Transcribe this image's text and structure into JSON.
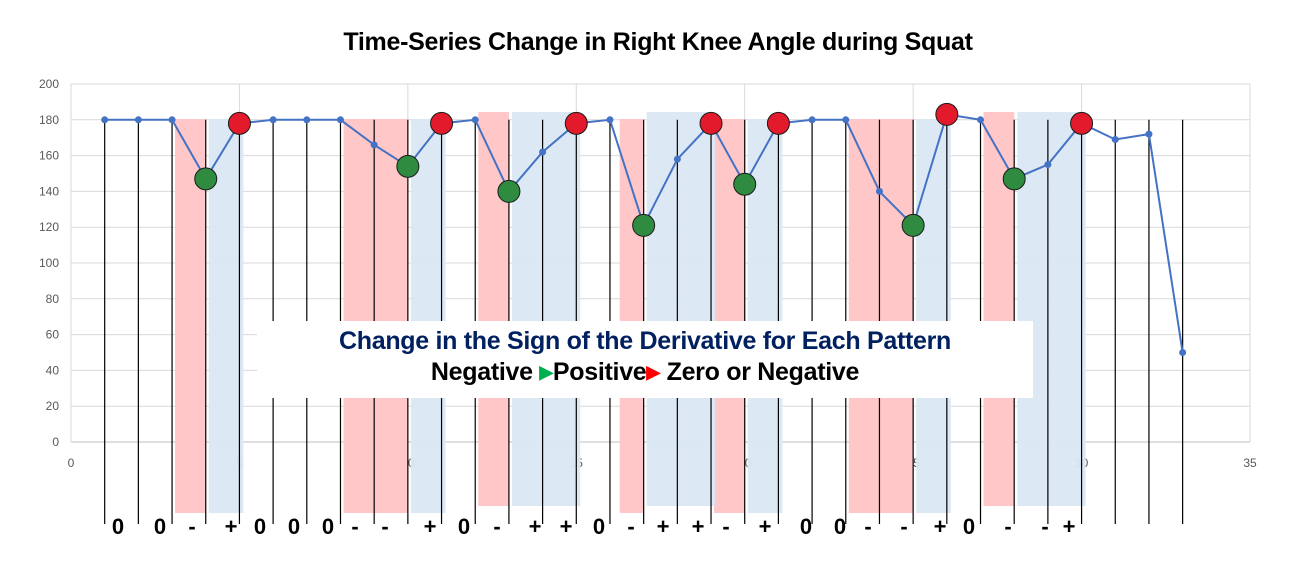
{
  "chart_data": {
    "type": "line",
    "title": "Time-Series Change in Right Knee Angle during Squat",
    "xlabel": "",
    "ylabel": "",
    "xlim": [
      0,
      35
    ],
    "ylim": [
      0,
      200
    ],
    "x_ticks": [
      0,
      5,
      10,
      15,
      20,
      25,
      30,
      35
    ],
    "y_ticks": [
      0,
      20,
      40,
      60,
      80,
      100,
      120,
      140,
      160,
      180,
      200
    ],
    "grid": true,
    "legend": null,
    "series": [
      {
        "name": "Right Knee Angle",
        "color": "#4472c4",
        "x": [
          1,
          2,
          3,
          4,
          5,
          6,
          7,
          8,
          9,
          10,
          11,
          12,
          13,
          14,
          15,
          16,
          17,
          18,
          19,
          20,
          21,
          22,
          23,
          24,
          25,
          26,
          27,
          28,
          29,
          30,
          31,
          32,
          33
        ],
        "values": [
          180,
          180,
          180,
          147,
          178,
          180,
          180,
          180,
          166,
          154,
          178,
          180,
          140,
          162,
          178,
          180,
          121,
          158,
          178,
          144,
          178,
          180,
          180,
          140,
          121,
          183,
          180,
          147,
          155,
          178,
          169,
          172,
          50
        ]
      }
    ],
    "minima_markers": {
      "color": "#2e8b40",
      "x": [
        4,
        10,
        13,
        17,
        20,
        25,
        28
      ]
    },
    "maxima_markers": {
      "color": "#e31a2b",
      "x": [
        5,
        11,
        15,
        19,
        21,
        26,
        30
      ]
    },
    "negative_regions": [
      [
        3,
        4
      ],
      [
        8,
        10
      ],
      [
        12,
        13
      ],
      [
        16.2,
        17
      ],
      [
        19,
        20
      ],
      [
        23,
        25
      ],
      [
        27,
        28
      ]
    ],
    "positive_regions": [
      [
        4,
        5
      ],
      [
        10,
        11
      ],
      [
        13,
        15
      ],
      [
        17,
        19
      ],
      [
        20,
        21
      ],
      [
        25,
        26
      ],
      [
        28,
        30
      ]
    ],
    "region_colors": {
      "negative": "#ffc7c8",
      "positive": "#dae8f4"
    },
    "derivative_signs": [
      "0",
      "0",
      "-",
      "+",
      "0",
      "0",
      "0",
      "-",
      "-",
      "+",
      "0",
      "-",
      "+",
      "+",
      "0",
      "-",
      "+",
      "+",
      "-",
      "+",
      "0",
      "0",
      "-",
      "-",
      "+",
      "0",
      "-",
      "-",
      "+"
    ],
    "annotations": [
      "Change in the Sign of the Derivative for Each Pattern",
      "Negative ▶Positive ▶ Zero or Negative"
    ]
  },
  "title": "Time-Series Change in Right Knee Angle during Squat",
  "annotation": {
    "line1": "Change in the Sign of the Derivative for Each Pattern",
    "neg": "Negative ",
    "arrow1": "▶",
    "pos": "Positive",
    "arrow2": "▶",
    "zero_or_neg": " Zero or Negative"
  }
}
